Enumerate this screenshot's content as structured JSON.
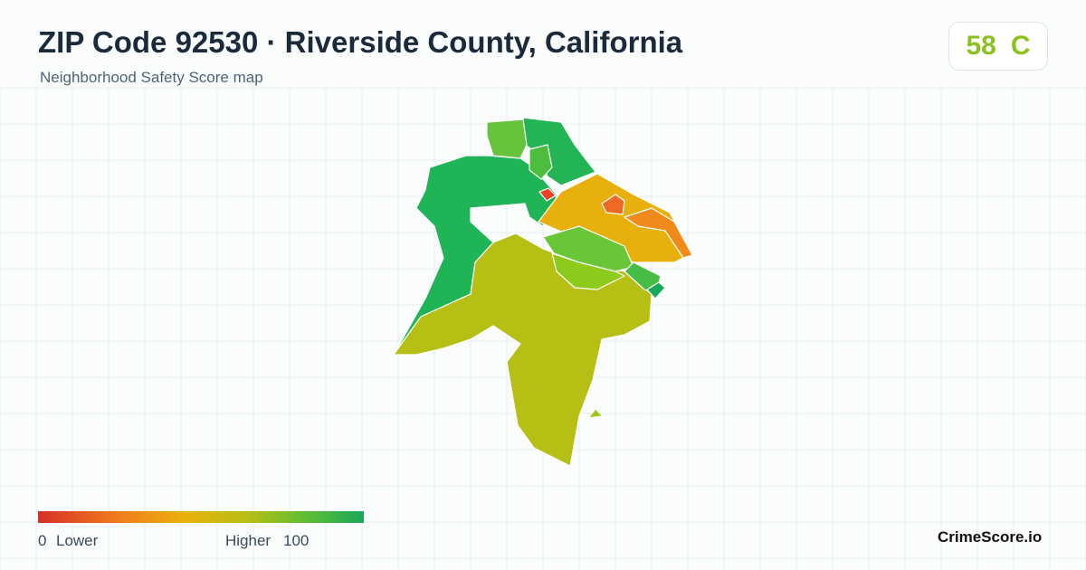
{
  "header": {
    "title": "ZIP Code 92530 · Riverside County, California",
    "subtitle": "Neighborhood Safety Score map"
  },
  "score": {
    "value": 58,
    "grade": "C"
  },
  "legend": {
    "min": 0,
    "min_label": "Lower",
    "max_label": "Higher",
    "max": 100
  },
  "brand": "CrimeScore.io"
}
